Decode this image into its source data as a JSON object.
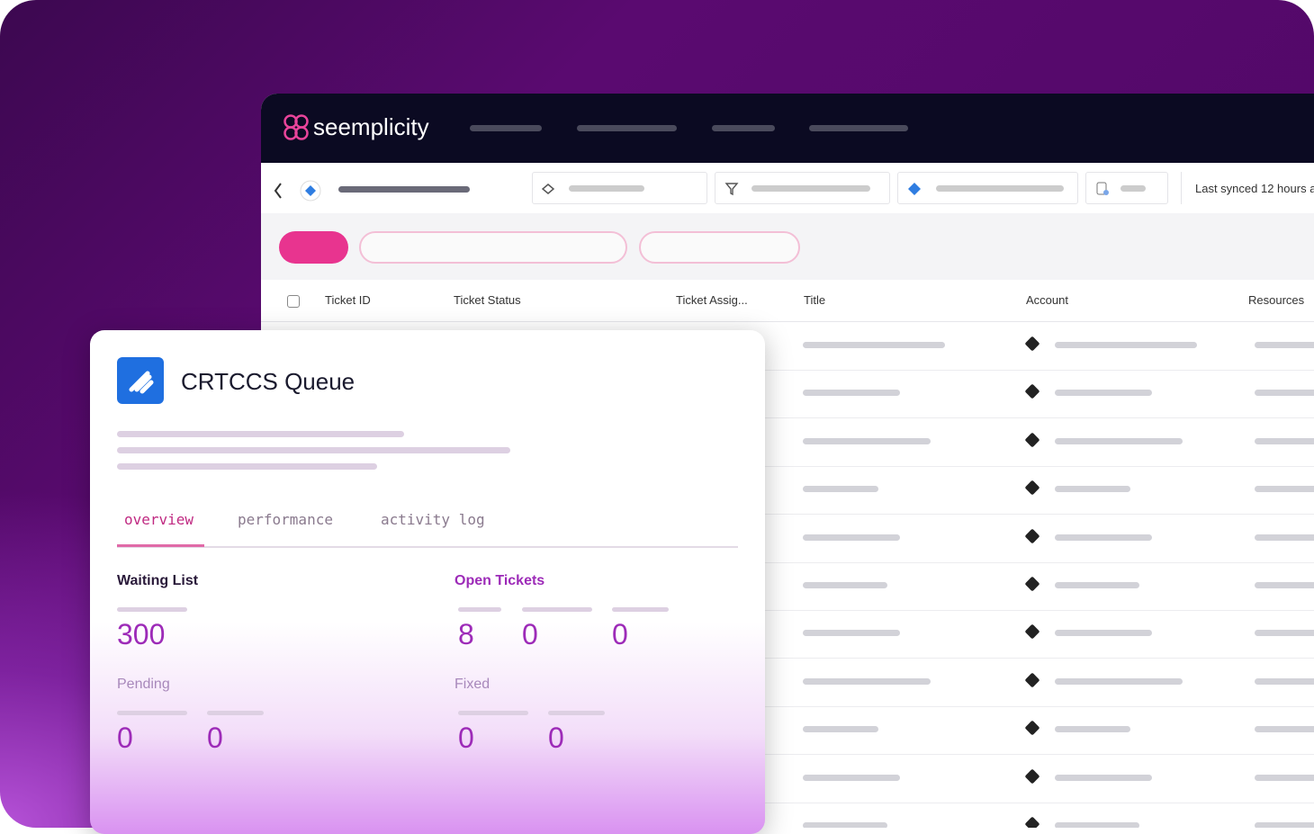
{
  "header": {
    "logo": "seemplicity",
    "sync": "Last synced 12 hours a"
  },
  "table": {
    "columns": [
      "Ticket ID",
      "Ticket Status",
      "Ticket Assig...",
      "Title",
      "Account",
      "Resources"
    ]
  },
  "card": {
    "title": "CRTCCS Queue",
    "tabs": [
      "overview",
      "performance",
      "activity log"
    ],
    "sections": [
      {
        "label": "Waiting List",
        "values": [
          300
        ]
      },
      {
        "label": "Open Tickets",
        "values": [
          8,
          0,
          0
        ]
      },
      {
        "label": "Pending",
        "values": [
          0,
          0
        ]
      },
      {
        "label": "Fixed",
        "values": [
          0,
          0
        ]
      }
    ]
  }
}
